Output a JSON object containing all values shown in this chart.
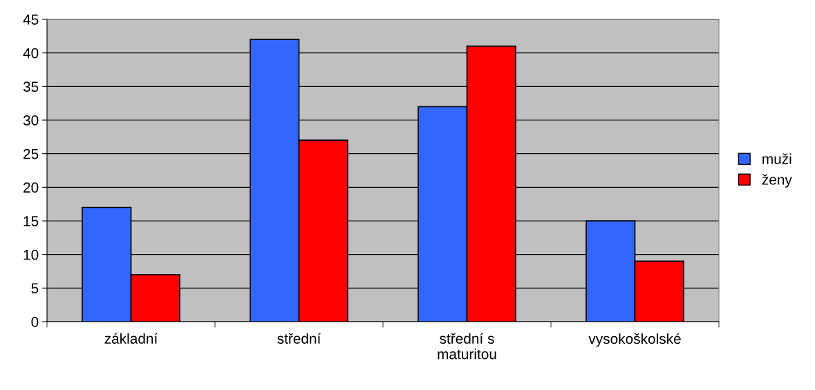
{
  "chart_data": {
    "type": "bar",
    "categories": [
      "základní",
      "střední",
      "střední s\nmaturitou",
      "vysokoškolské"
    ],
    "series": [
      {
        "name": "muži",
        "color": "#3366ff",
        "values": [
          17,
          42,
          32,
          15
        ]
      },
      {
        "name": "ženy",
        "color": "#ff0000",
        "values": [
          7,
          27,
          41,
          9
        ]
      }
    ],
    "ylim": [
      0,
      45
    ],
    "yticks": [
      0,
      5,
      10,
      15,
      20,
      25,
      30,
      35,
      40,
      45
    ],
    "grid": "y",
    "legend": "right"
  }
}
